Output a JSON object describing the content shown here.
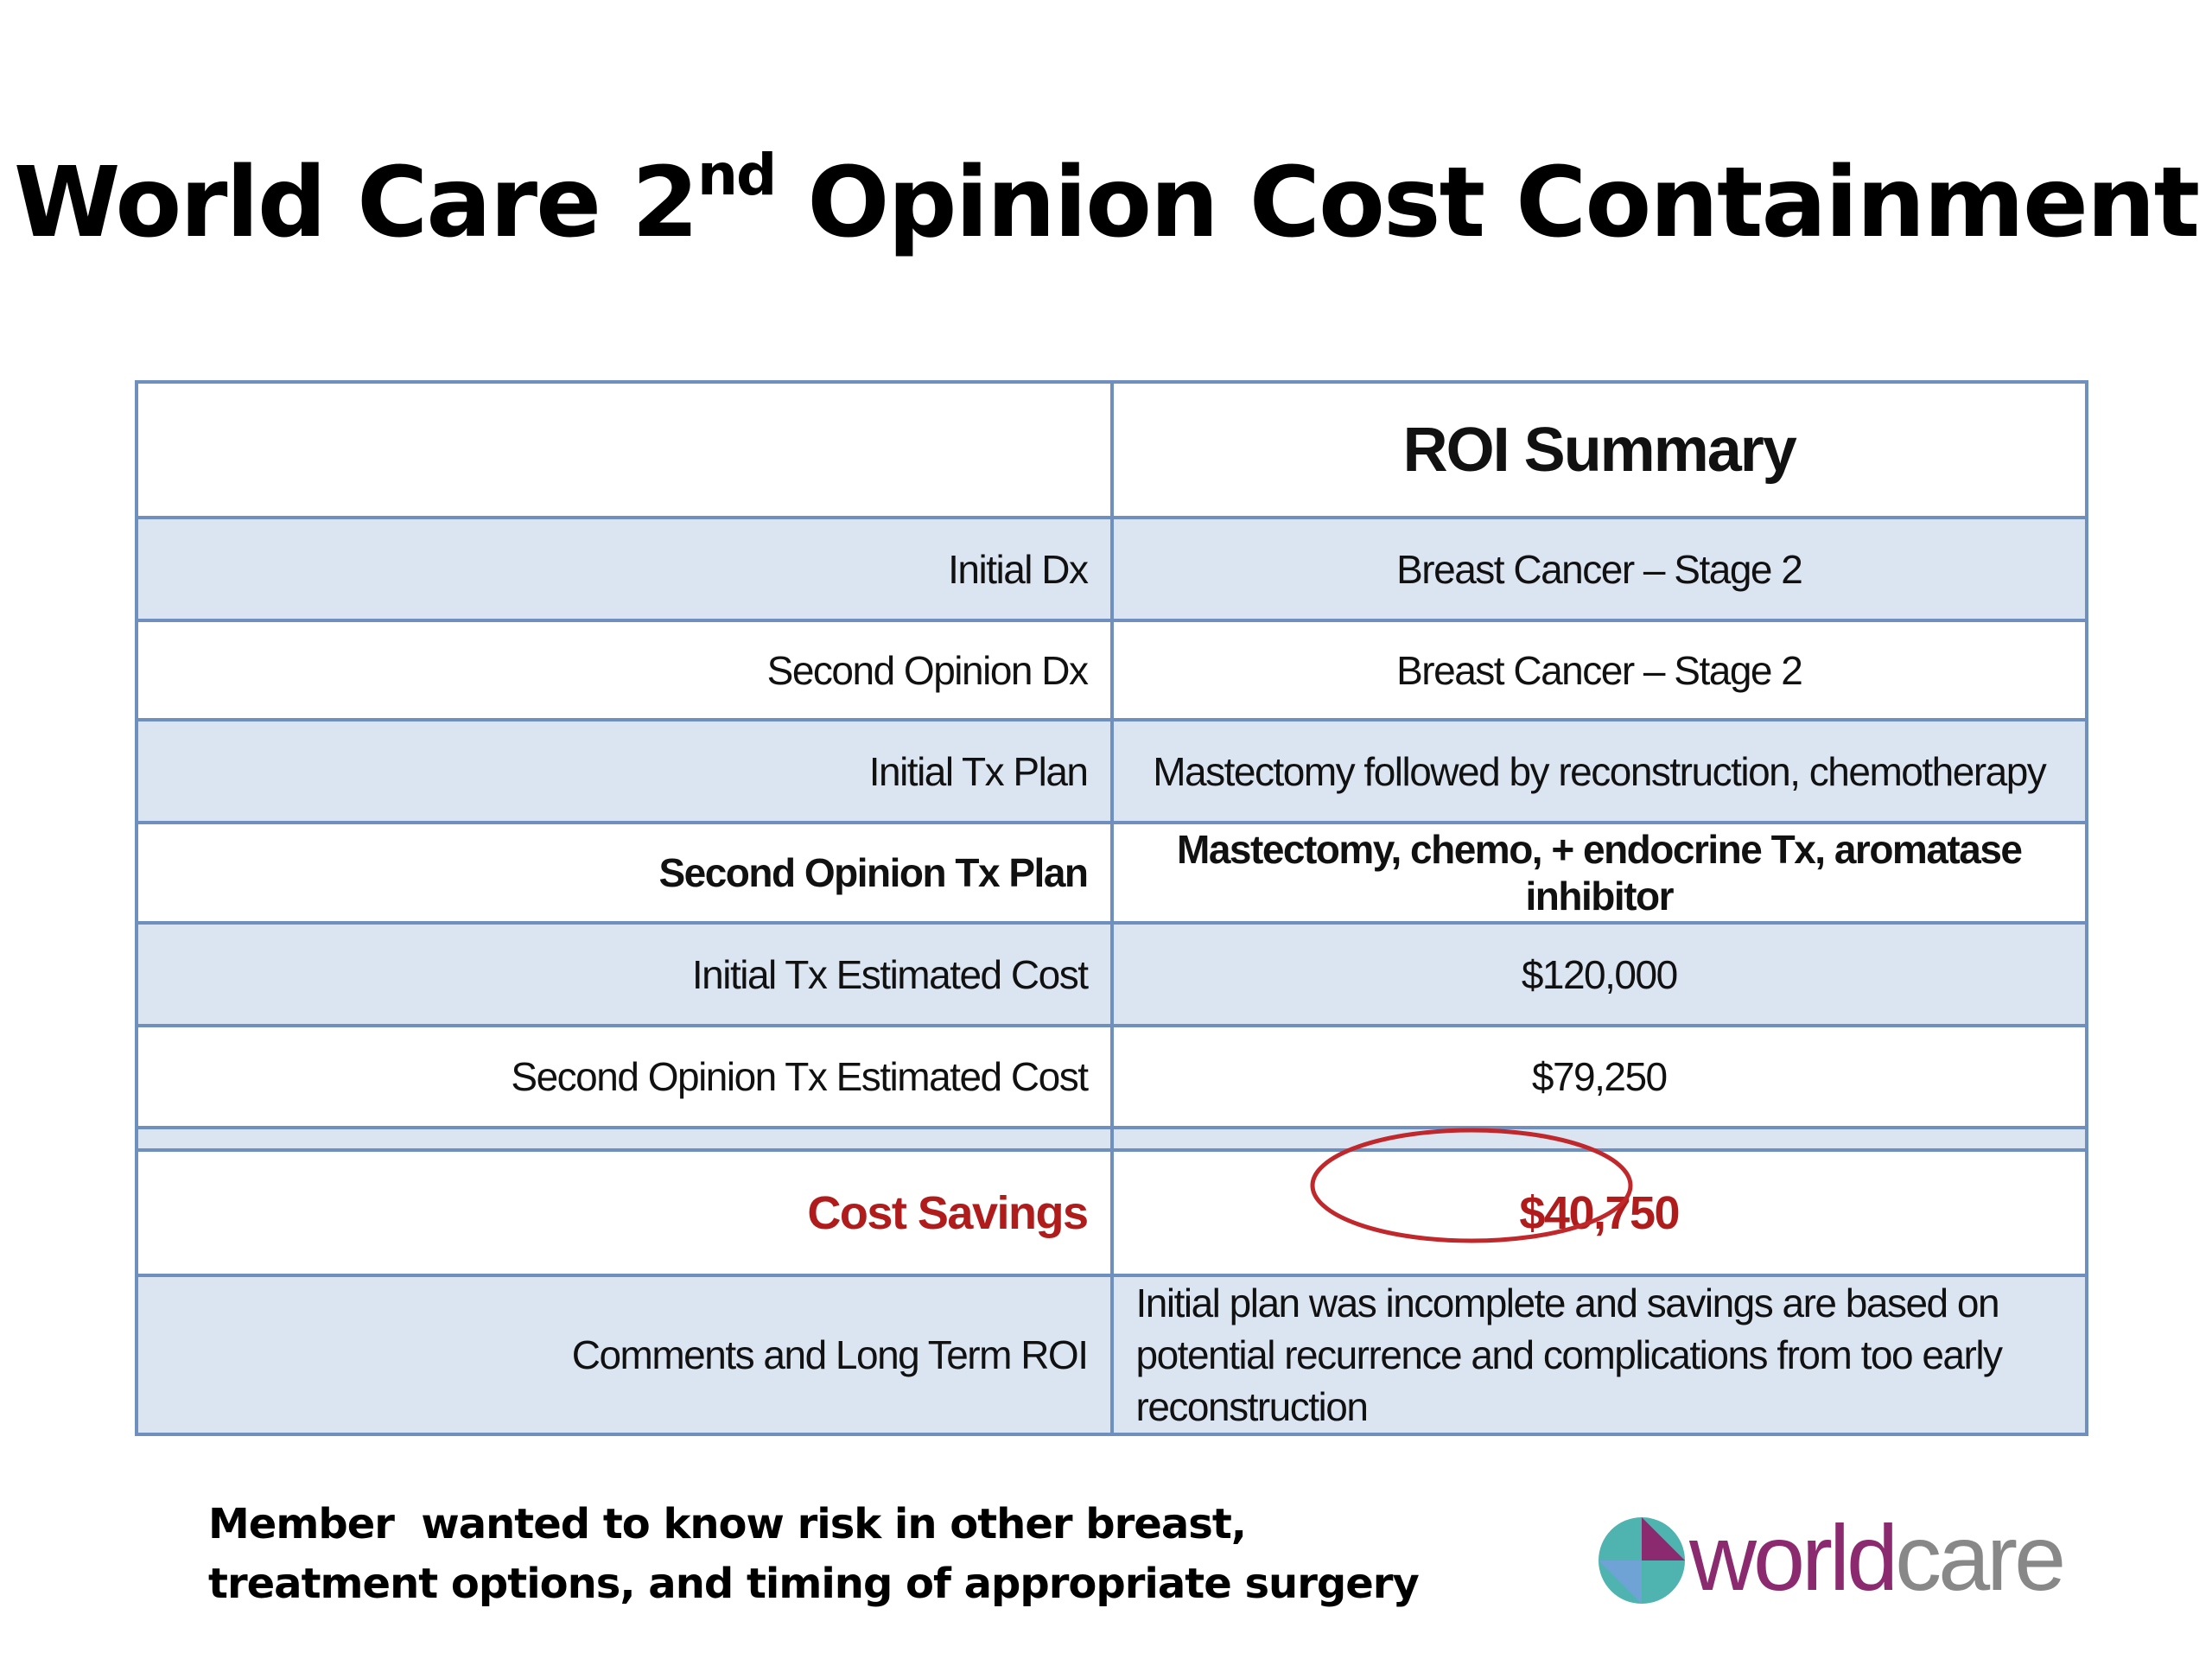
{
  "title": {
    "main": "World Care 2",
    "sup": "nd",
    "rest": " Opinion Cost Containment"
  },
  "table": {
    "header": "ROI Summary",
    "rows": [
      [
        "Initial Dx",
        "Breast Cancer – Stage 2"
      ],
      [
        "Second Opinion Dx",
        "Breast Cancer – Stage 2"
      ],
      [
        "Initial Tx Plan",
        "Mastectomy followed by reconstruction, chemotherapy"
      ],
      [
        "Second Opinion Tx Plan",
        "Mastectomy, chemo, +  endocrine Tx, aromatase inhibitor"
      ],
      [
        "Initial Tx Estimated Cost",
        "$120,000"
      ],
      [
        "Second Opinion Tx Estimated Cost",
        "$79,250"
      ],
      [
        "Cost Savings",
        "$40,750"
      ],
      [
        "Comments and Long Term ROI",
        "Initial plan was incomplete and savings are based on potential recurrence and complications from too early reconstruction"
      ]
    ]
  },
  "note": [
    "Member  wanted to know risk in other breast,",
    "treatment options, and timing of appropriate surgery"
  ],
  "logo": {
    "first": "world",
    "second": "care"
  }
}
